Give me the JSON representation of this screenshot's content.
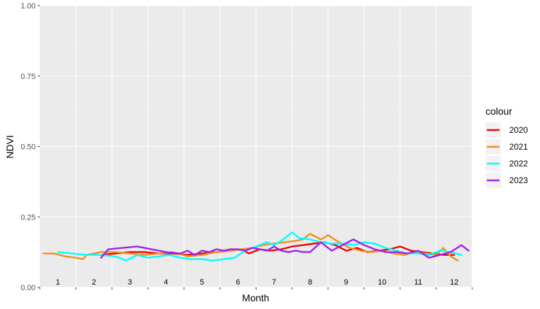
{
  "chart_data": {
    "type": "line",
    "xlabel": "Month",
    "ylabel": "NDVI",
    "ylim": [
      0,
      1
    ],
    "xlim": [
      0.5,
      12.5
    ],
    "y_ticks": [
      "0.00",
      "0.25",
      "0.50",
      "0.75",
      "1.00"
    ],
    "y_tick_values": [
      0,
      0.25,
      0.5,
      0.75,
      1.0
    ],
    "x_tick_labels": [
      "1",
      "2",
      "3",
      "4",
      "5",
      "6",
      "7",
      "8",
      "9",
      "10",
      "11",
      "12"
    ],
    "grid": true,
    "legend_title": "colour",
    "legend_position": "right",
    "series": [
      {
        "name": "2020",
        "color": "#ee0000",
        "x": [
          2.2,
          2.6,
          3.0,
          3.4,
          3.8,
          4.2,
          4.6,
          5.0,
          5.4,
          5.8,
          6.1,
          6.3,
          6.6,
          6.9,
          7.2,
          7.5,
          7.8,
          8.1,
          8.4,
          8.7,
          9.0,
          9.3,
          9.6,
          9.9,
          10.2,
          10.5,
          10.8,
          11.1,
          11.4,
          11.7,
          12.0
        ],
        "y": [
          0.115,
          0.12,
          0.125,
          0.125,
          0.12,
          0.12,
          0.115,
          0.12,
          0.125,
          0.13,
          0.135,
          0.12,
          0.135,
          0.13,
          0.135,
          0.145,
          0.15,
          0.155,
          0.16,
          0.15,
          0.13,
          0.14,
          0.125,
          0.13,
          0.135,
          0.145,
          0.13,
          0.125,
          0.12,
          0.115,
          0.115
        ]
      },
      {
        "name": "2021",
        "color": "#f28e1c",
        "x": [
          0.6,
          0.9,
          1.2,
          1.5,
          1.7,
          1.8,
          2.2,
          2.6,
          3.0,
          3.4,
          3.8,
          4.2,
          4.6,
          5.0,
          5.4,
          5.8,
          6.1,
          6.4,
          6.7,
          7.0,
          7.3,
          7.6,
          7.8,
          8.0,
          8.3,
          8.5,
          8.8,
          9.1,
          9.4,
          9.7,
          10.0,
          10.3,
          10.6,
          10.9,
          11.2,
          11.5,
          11.7,
          11.9,
          12.1
        ],
        "y": [
          0.12,
          0.12,
          0.11,
          0.105,
          0.1,
          0.115,
          0.125,
          0.125,
          0.12,
          0.115,
          0.12,
          0.125,
          0.11,
          0.115,
          0.125,
          0.13,
          0.135,
          0.14,
          0.15,
          0.155,
          0.16,
          0.165,
          0.17,
          0.19,
          0.17,
          0.185,
          0.16,
          0.14,
          0.13,
          0.125,
          0.13,
          0.12,
          0.115,
          0.125,
          0.12,
          0.115,
          0.14,
          0.11,
          0.095
        ]
      },
      {
        "name": "2022",
        "color": "#00ffff",
        "x": [
          1.0,
          1.4,
          1.8,
          2.2,
          2.6,
          2.9,
          3.2,
          3.5,
          3.8,
          4.1,
          4.4,
          4.7,
          5.0,
          5.3,
          5.6,
          5.9,
          6.2,
          6.5,
          6.8,
          7.0,
          7.2,
          7.5,
          7.7,
          8.0,
          8.3,
          8.6,
          8.9,
          9.2,
          9.5,
          9.8,
          10.1,
          10.4,
          10.7,
          11.0,
          11.3,
          11.6,
          11.9,
          12.2
        ],
        "y": [
          0.125,
          0.12,
          0.115,
          0.115,
          0.11,
          0.095,
          0.115,
          0.105,
          0.11,
          0.115,
          0.105,
          0.1,
          0.1,
          0.095,
          0.1,
          0.105,
          0.13,
          0.145,
          0.16,
          0.15,
          0.165,
          0.195,
          0.175,
          0.17,
          0.16,
          0.155,
          0.155,
          0.15,
          0.16,
          0.155,
          0.14,
          0.13,
          0.12,
          0.12,
          0.115,
          0.13,
          0.125,
          0.115
        ]
      },
      {
        "name": "2023",
        "color": "#a020f0",
        "x": [
          2.2,
          2.4,
          2.8,
          3.2,
          3.6,
          4.0,
          4.4,
          4.6,
          4.8,
          5.0,
          5.2,
          5.4,
          5.6,
          5.8,
          6.0,
          6.2,
          6.4,
          6.6,
          6.8,
          7.0,
          7.2,
          7.4,
          7.6,
          7.8,
          8.0,
          8.3,
          8.6,
          8.9,
          9.2,
          9.5,
          9.8,
          10.1,
          10.4,
          10.7,
          11.0,
          11.3,
          11.6,
          11.9,
          12.2,
          12.4
        ],
        "y": [
          0.105,
          0.135,
          0.14,
          0.145,
          0.135,
          0.125,
          0.12,
          0.13,
          0.115,
          0.13,
          0.125,
          0.135,
          0.13,
          0.135,
          0.135,
          0.13,
          0.14,
          0.135,
          0.13,
          0.145,
          0.13,
          0.125,
          0.13,
          0.125,
          0.125,
          0.16,
          0.13,
          0.15,
          0.17,
          0.15,
          0.135,
          0.125,
          0.125,
          0.12,
          0.13,
          0.105,
          0.115,
          0.125,
          0.15,
          0.13
        ]
      }
    ]
  }
}
